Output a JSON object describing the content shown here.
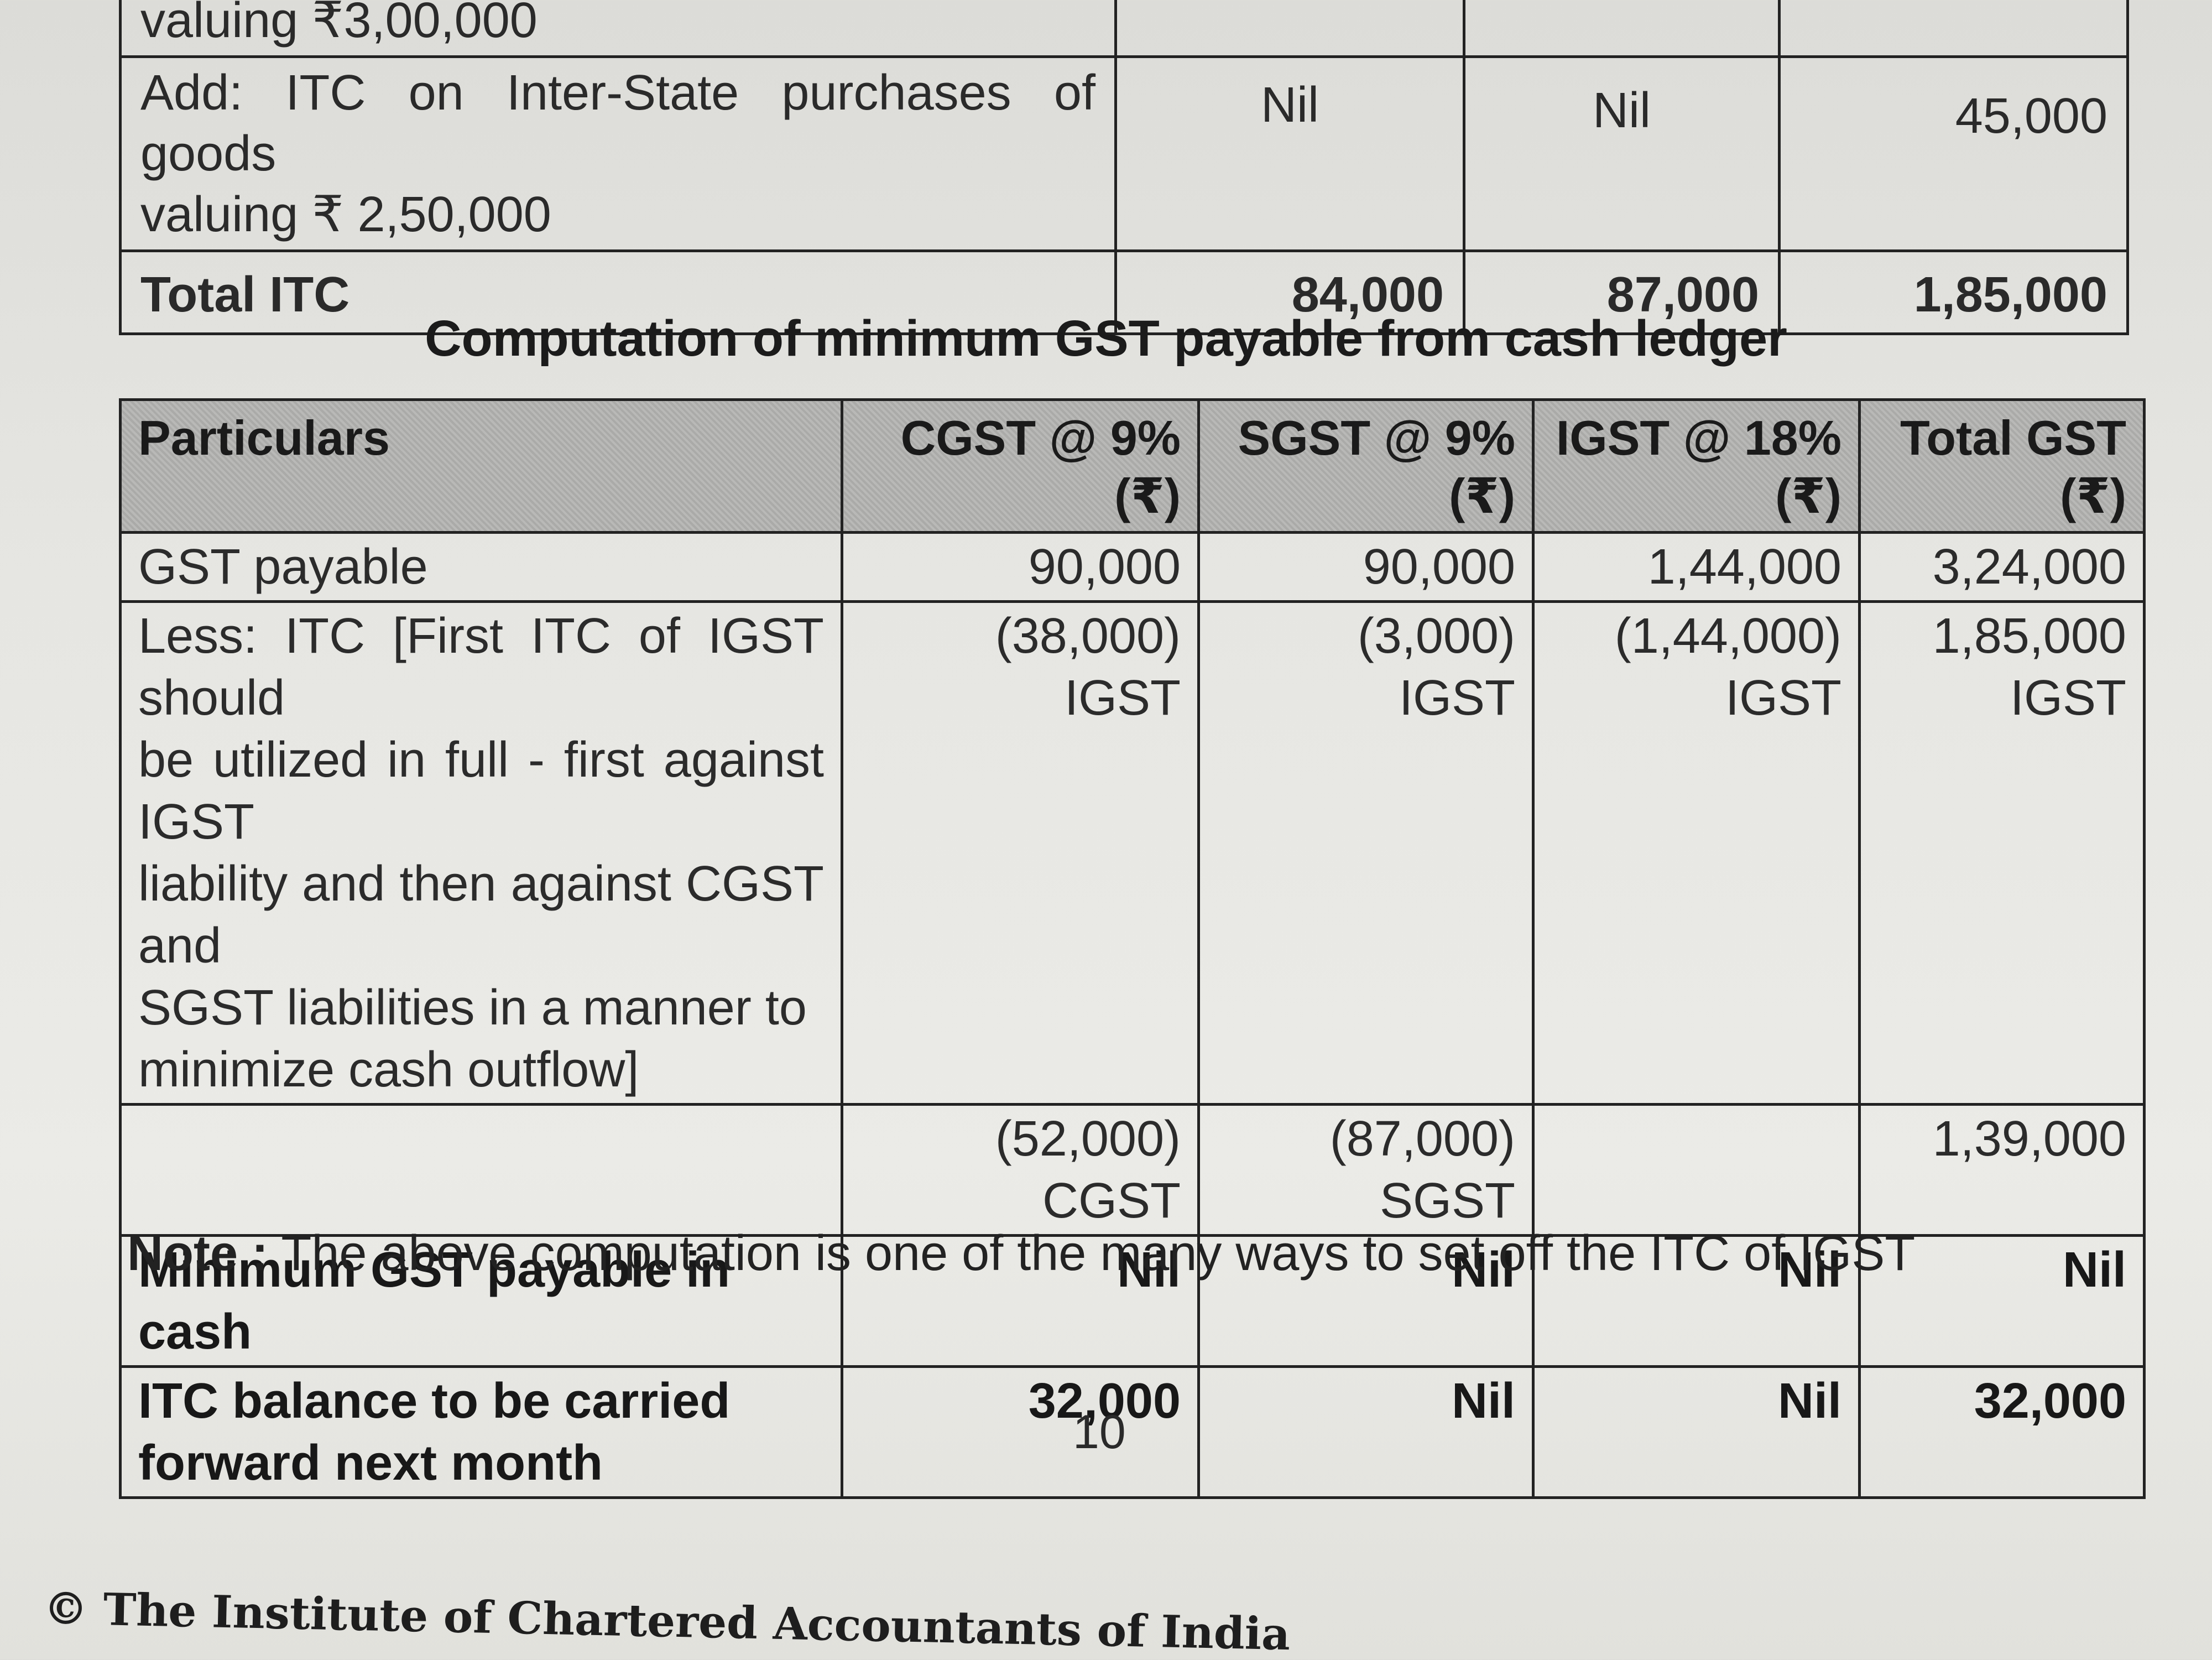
{
  "itc_table": {
    "rows": [
      {
        "label_lines": [
          "valuing ₹3,00,000"
        ],
        "cgst": "",
        "sgst": "",
        "igst": ""
      },
      {
        "label_lines": [
          "Add: ITC on Inter-State purchases of goods",
          "valuing ₹ 2,50,000"
        ],
        "cgst": "Nil",
        "sgst": "Nil",
        "igst": "45,000"
      }
    ],
    "total": {
      "label": "Total ITC",
      "cgst": "84,000",
      "sgst": "87,000",
      "igst": "1,85,000"
    }
  },
  "section_title": "Computation of minimum GST payable from cash ledger",
  "gst_table": {
    "headers": {
      "particulars": "Particulars",
      "cgst": [
        "CGST @ 9%",
        "(₹)"
      ],
      "sgst": [
        "SGST @ 9%",
        "(₹)"
      ],
      "igst": [
        "IGST @ 18%",
        "(₹)"
      ],
      "total": [
        "Total GST",
        "(₹)"
      ]
    },
    "gst_payable": {
      "label": "GST payable",
      "cgst": "90,000",
      "sgst": "90,000",
      "igst": "1,44,000",
      "total": "3,24,000"
    },
    "less_itc": {
      "label_lines": [
        "Less: ITC [First ITC of IGST should",
        "be utilized in full - first against IGST",
        "liability and then against CGST and",
        "SGST liabilities in a manner to",
        "minimize cash outflow]"
      ],
      "cgst": [
        "(38,000)",
        "IGST"
      ],
      "sgst": [
        "(3,000)",
        "IGST"
      ],
      "igst": [
        "(1,44,000)",
        "IGST"
      ],
      "total": [
        "1,85,000",
        "IGST"
      ]
    },
    "setoff": {
      "label": "",
      "cgst": [
        "(52,000)",
        "CGST"
      ],
      "sgst": [
        "(87,000)",
        "SGST"
      ],
      "igst": "",
      "total": "1,39,000"
    },
    "minimum_cash": {
      "label": "Minimum GST payable in cash",
      "cgst": "Nil",
      "sgst": "Nil",
      "igst": "Nil",
      "total": "Nil"
    },
    "carry_forward": {
      "label_lines": [
        "ITC balance to be carried",
        "forward next month"
      ],
      "cgst": "32,000",
      "sgst": "Nil",
      "igst": "Nil",
      "total": "32,000"
    }
  },
  "note": {
    "label": "Note :",
    "text": "The above computation is one of the many ways to set off the ITC of IGST"
  },
  "page_number": "10",
  "copyright": "© The Institute of Chartered Accountants of India"
}
